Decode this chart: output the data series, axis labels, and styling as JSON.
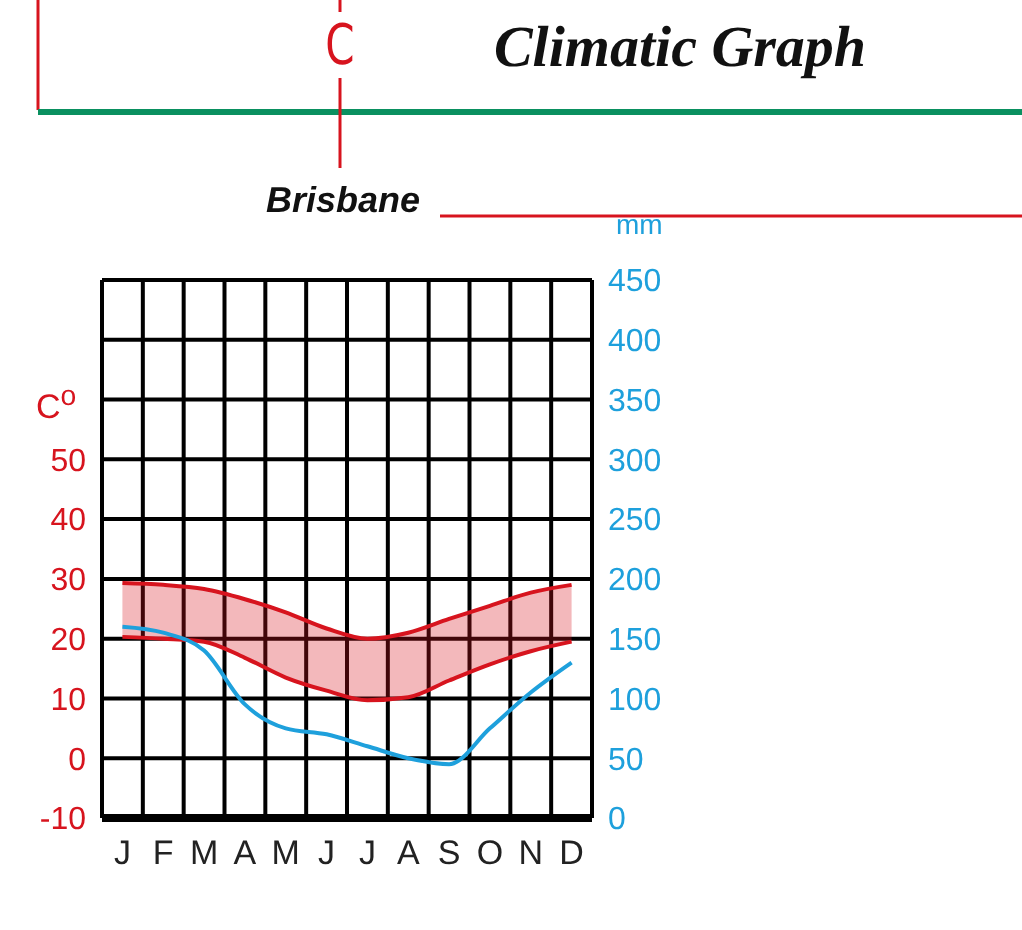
{
  "chart_data": {
    "type": "line",
    "title": "Climatic Graph",
    "subtitle": "Brisbane",
    "ylabel": "C$^{o}$",
    "y2label": "mm",
    "annotations": [
      "C"
    ],
    "categories": [
      "J",
      "F",
      "M",
      "A",
      "M",
      "J",
      "J",
      "A",
      "S",
      "O",
      "N",
      "D"
    ],
    "series": [
      {
        "color": "#d7141e",
        "values": [
          29.3,
          29,
          28.3,
          26.6,
          24.4,
          21.7,
          20,
          21,
          23.3,
          25.5,
          27.7,
          29
        ],
        "lower": [
          20.3,
          20,
          19.5,
          16.8,
          13.5,
          11.3,
          9.7,
          10.2,
          13,
          15.7,
          17.9,
          19.5
        ],
        "upper": [
          29.3,
          29,
          28.3,
          26.6,
          24.4,
          21.7,
          20,
          21,
          23.3,
          25.5,
          27.7,
          29
        ]
      },
      {
        "color": "#d7141e",
        "values": [
          20.3,
          20,
          19.5,
          16.8,
          13.5,
          11.3,
          9.7,
          10.2,
          13,
          15.7,
          17.9,
          19.5
        ]
      },
      {
        "axis": "y2",
        "color": "#1ea0dc",
        "values": [
          160,
          155,
          140,
          95,
          75,
          70,
          60,
          50,
          45,
          75,
          105,
          130
        ]
      }
    ],
    "ylim": [
      -10,
      80
    ],
    "yticks": [
      -10,
      0,
      10,
      20,
      30,
      40,
      50,
      {
        "value": 60,
        "label": null
      },
      {
        "value": 70,
        "label": null
      },
      {
        "value": 80,
        "label": null
      }
    ],
    "y2lim": [
      0,
      450
    ],
    "y2ticks": [
      0,
      50,
      100,
      150,
      200,
      250,
      300,
      350,
      400,
      450
    ],
    "grid": true,
    "marker": "none",
    "line_style": "solid"
  }
}
